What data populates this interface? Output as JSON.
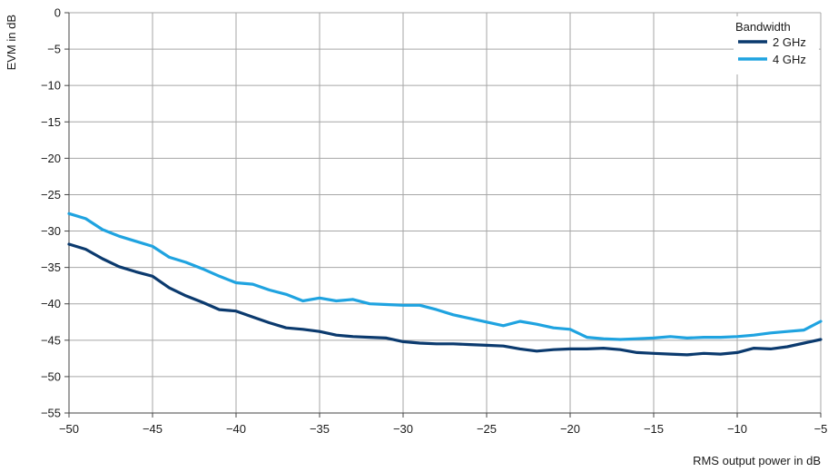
{
  "chart_data": {
    "type": "line",
    "title": "",
    "xlabel": "RMS output power in dB",
    "ylabel": "EVM in dB",
    "xlim": [
      -50,
      -5
    ],
    "ylim": [
      -55,
      0
    ],
    "xticks": [
      -50,
      -45,
      -40,
      -35,
      -30,
      -25,
      -20,
      -15,
      -10,
      -5
    ],
    "yticks": [
      0,
      -5,
      -10,
      -15,
      -20,
      -25,
      -30,
      -35,
      -40,
      -45,
      -50,
      -55
    ],
    "grid": true,
    "legend": {
      "title": "Bandwidth",
      "placement": "top-right"
    },
    "series": [
      {
        "name": "2 GHz",
        "color": "#0b3a6e",
        "x": [
          -50,
          -49,
          -48,
          -47,
          -46,
          -45,
          -44,
          -43,
          -42,
          -41,
          -40,
          -39,
          -38,
          -37,
          -36,
          -35,
          -34,
          -33,
          -32,
          -31,
          -30,
          -29,
          -28,
          -27,
          -26,
          -25,
          -24,
          -23,
          -22,
          -21,
          -20,
          -19,
          -18,
          -17,
          -16,
          -15,
          -14,
          -13,
          -12,
          -11,
          -10,
          -9,
          -8,
          -7,
          -6,
          -5
        ],
        "y": [
          -31.8,
          -32.5,
          -33.8,
          -34.9,
          -35.6,
          -36.2,
          -37.8,
          -38.9,
          -39.8,
          -40.8,
          -41.0,
          -41.8,
          -42.6,
          -43.3,
          -43.5,
          -43.8,
          -44.3,
          -44.5,
          -44.6,
          -44.7,
          -45.2,
          -45.4,
          -45.5,
          -45.5,
          -45.6,
          -45.7,
          -45.8,
          -46.2,
          -46.5,
          -46.3,
          -46.2,
          -46.2,
          -46.1,
          -46.3,
          -46.7,
          -46.8,
          -46.9,
          -47.0,
          -46.8,
          -46.9,
          -46.7,
          -46.1,
          -46.2,
          -45.9,
          -45.4,
          -44.9
        ]
      },
      {
        "name": "4 GHz",
        "color": "#1fa3e0",
        "x": [
          -50,
          -49,
          -48,
          -47,
          -46,
          -45,
          -44,
          -43,
          -42,
          -41,
          -40,
          -39,
          -38,
          -37,
          -36,
          -35,
          -34,
          -33,
          -32,
          -31,
          -30,
          -29,
          -28,
          -27,
          -26,
          -25,
          -24,
          -23,
          -22,
          -21,
          -20,
          -19,
          -18,
          -17,
          -16,
          -15,
          -14,
          -13,
          -12,
          -11,
          -10,
          -9,
          -8,
          -7,
          -6,
          -5
        ],
        "y": [
          -27.6,
          -28.3,
          -29.8,
          -30.7,
          -31.4,
          -32.1,
          -33.6,
          -34.3,
          -35.2,
          -36.2,
          -37.1,
          -37.3,
          -38.1,
          -38.7,
          -39.6,
          -39.2,
          -39.6,
          -39.4,
          -40.0,
          -40.1,
          -40.2,
          -40.2,
          -40.8,
          -41.5,
          -42.0,
          -42.5,
          -43.0,
          -42.4,
          -42.8,
          -43.3,
          -43.5,
          -44.6,
          -44.8,
          -44.9,
          -44.8,
          -44.7,
          -44.5,
          -44.7,
          -44.6,
          -44.6,
          -44.5,
          -44.3,
          -44.0,
          -43.8,
          -43.6,
          -42.4
        ]
      }
    ]
  }
}
